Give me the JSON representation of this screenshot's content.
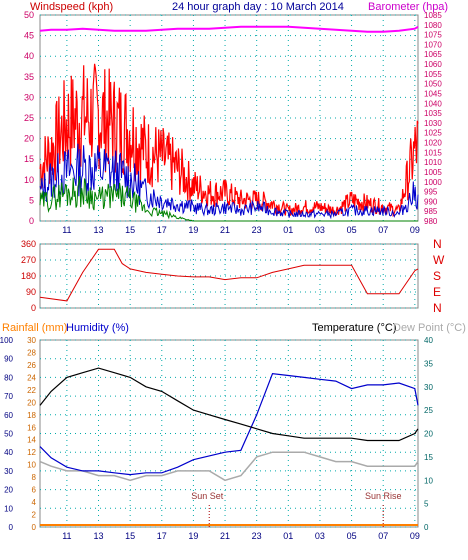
{
  "colors": {
    "wind_speed": "#ff0000",
    "wind_avg": "#0000cc",
    "wind_low": "#008000",
    "barometer": "#ff00ff",
    "wind_dir": "#dd0000",
    "temperature": "#000000",
    "humidity": "#0000cc",
    "dewpoint": "#aaaaaa",
    "rainfall": "#ff8000",
    "grid": "#00aaaa",
    "axis_pink": "#cc0066",
    "axis_blue": "#000080",
    "axis_orange": "#cc6600",
    "axis_teal": "#006666",
    "header_left": "#cc0000",
    "header_center": "#000099",
    "header_right": "#cc00cc",
    "header_temp": "#000000",
    "header_dew": "#aaaaaa",
    "header_rain": "#ff8000",
    "header_hum": "#0000cc"
  },
  "header": {
    "left": "Windspeed (kph)",
    "center": "24 hour graph day : 10 March 2014",
    "right": "Barometer (hpa)",
    "rain": "Rainfall (mm)",
    "humidity": "Humidity (%)",
    "temperature": "Temperature (°C)",
    "dewpoint": "Dew Point (°C)",
    "sunset": "Sun Set",
    "sunrise": "Sun Rise"
  },
  "chart_data": [
    {
      "type": "line",
      "name": "wind-barometer",
      "x_ticks": [
        "11",
        "13",
        "15",
        "17",
        "19",
        "21",
        "23",
        "01",
        "03",
        "05",
        "07",
        "09"
      ],
      "y_left": {
        "min": 0,
        "max": 50,
        "ticks": [
          0,
          5,
          10,
          15,
          20,
          25,
          30,
          35,
          40,
          45,
          50
        ]
      },
      "y_right": {
        "min": 980,
        "max": 1085,
        "ticks": [
          980,
          985,
          990,
          995,
          1000,
          1005,
          1010,
          1015,
          1020,
          1025,
          1030,
          1035,
          1040,
          1045,
          1050,
          1055,
          1060,
          1065,
          1070,
          1075,
          1080,
          1085
        ]
      },
      "hours": [
        9.3,
        10,
        11,
        12,
        13,
        14,
        15,
        16,
        17,
        18,
        19,
        20,
        21,
        22,
        23,
        24,
        25,
        26,
        27,
        28,
        29,
        30,
        31,
        32,
        33,
        33.2
      ],
      "barometer": [
        1077,
        1077.5,
        1077.5,
        1078,
        1077.5,
        1077,
        1077,
        1077,
        1077.5,
        1078,
        1078,
        1078,
        1078.5,
        1079,
        1079,
        1079,
        1079,
        1078.5,
        1078,
        1077.5,
        1077,
        1076.5,
        1076.5,
        1077,
        1078,
        1079
      ],
      "wind_gust_peak": [
        15,
        20,
        28,
        30,
        30,
        28,
        26,
        20,
        18,
        15,
        10,
        8,
        8,
        6,
        6,
        5,
        3,
        4,
        4,
        3,
        6,
        5,
        4,
        3,
        20,
        22
      ],
      "wind_avg": [
        8,
        12,
        14,
        15,
        15,
        14,
        12,
        8,
        6,
        5,
        4,
        3,
        4,
        3,
        4,
        3,
        2,
        2,
        2,
        2,
        3,
        3,
        3,
        2,
        8,
        6
      ],
      "wind_low": [
        5,
        6,
        8,
        8,
        6,
        7,
        6,
        3,
        2,
        1,
        0,
        0,
        0,
        0,
        0,
        0,
        0,
        0,
        0,
        0,
        0,
        0,
        0,
        0,
        0,
        0
      ]
    },
    {
      "type": "line",
      "name": "wind-direction",
      "y_left": {
        "min": 0,
        "max": 360,
        "ticks": [
          0,
          90,
          180,
          270,
          360
        ]
      },
      "right_labels": [
        "N",
        "W",
        "S",
        "E",
        "N"
      ],
      "hours": [
        9.3,
        11,
        12,
        13,
        14,
        14.5,
        15,
        16,
        17,
        18,
        19,
        20,
        21,
        22,
        23,
        24,
        25,
        26,
        27,
        28,
        29,
        30,
        31,
        32,
        33,
        33.2
      ],
      "direction": [
        60,
        40,
        200,
        330,
        330,
        250,
        220,
        200,
        190,
        180,
        175,
        175,
        160,
        170,
        170,
        200,
        220,
        240,
        240,
        240,
        240,
        80,
        80,
        80,
        210,
        220
      ]
    },
    {
      "type": "line",
      "name": "temp-humidity-rain",
      "y_left_hum": {
        "min": 0,
        "max": 100,
        "ticks": [
          0,
          10,
          20,
          30,
          40,
          50,
          60,
          70,
          80,
          90,
          100
        ]
      },
      "y_left_rain": {
        "min": 0,
        "max": 30,
        "ticks": [
          0,
          2,
          4,
          6,
          8,
          10,
          12,
          14,
          16,
          18,
          20,
          22,
          24,
          26,
          28,
          30
        ]
      },
      "y_right": {
        "min": 0,
        "max": 40,
        "ticks": [
          0,
          5,
          10,
          15,
          20,
          25,
          30,
          35,
          40
        ]
      },
      "hours": [
        9.3,
        10,
        11,
        12,
        13,
        14,
        15,
        16,
        17,
        18,
        19,
        20,
        21,
        22,
        23,
        24,
        25,
        26,
        27,
        28,
        29,
        30,
        31,
        32,
        33,
        33.2
      ],
      "temperature": [
        26,
        29,
        32,
        33,
        34,
        33,
        32,
        30,
        29,
        27,
        25,
        24,
        23,
        22,
        21,
        20,
        19.5,
        19,
        19,
        19,
        19,
        18.5,
        18.5,
        18.5,
        20,
        21
      ],
      "humidity": [
        43,
        37,
        32,
        30,
        30,
        29,
        28,
        29,
        29,
        32,
        36,
        38,
        40,
        41,
        60,
        82,
        81,
        80,
        79,
        78,
        74,
        76,
        76,
        77,
        74,
        65
      ],
      "dewpoint": [
        14,
        13,
        12,
        12,
        11,
        11,
        10,
        11,
        11,
        12,
        12,
        12,
        10,
        11,
        15,
        16,
        16,
        16,
        15,
        14,
        14,
        13,
        13,
        13,
        13,
        14
      ],
      "rainfall": [
        0,
        0,
        0,
        0,
        0,
        0,
        0,
        0,
        0,
        0,
        0,
        0,
        0,
        0,
        0,
        0,
        0,
        0,
        0,
        0,
        0,
        0,
        0,
        0,
        0,
        0
      ],
      "sunset_hour": 20.0,
      "sunrise_hour": 31.0
    }
  ]
}
